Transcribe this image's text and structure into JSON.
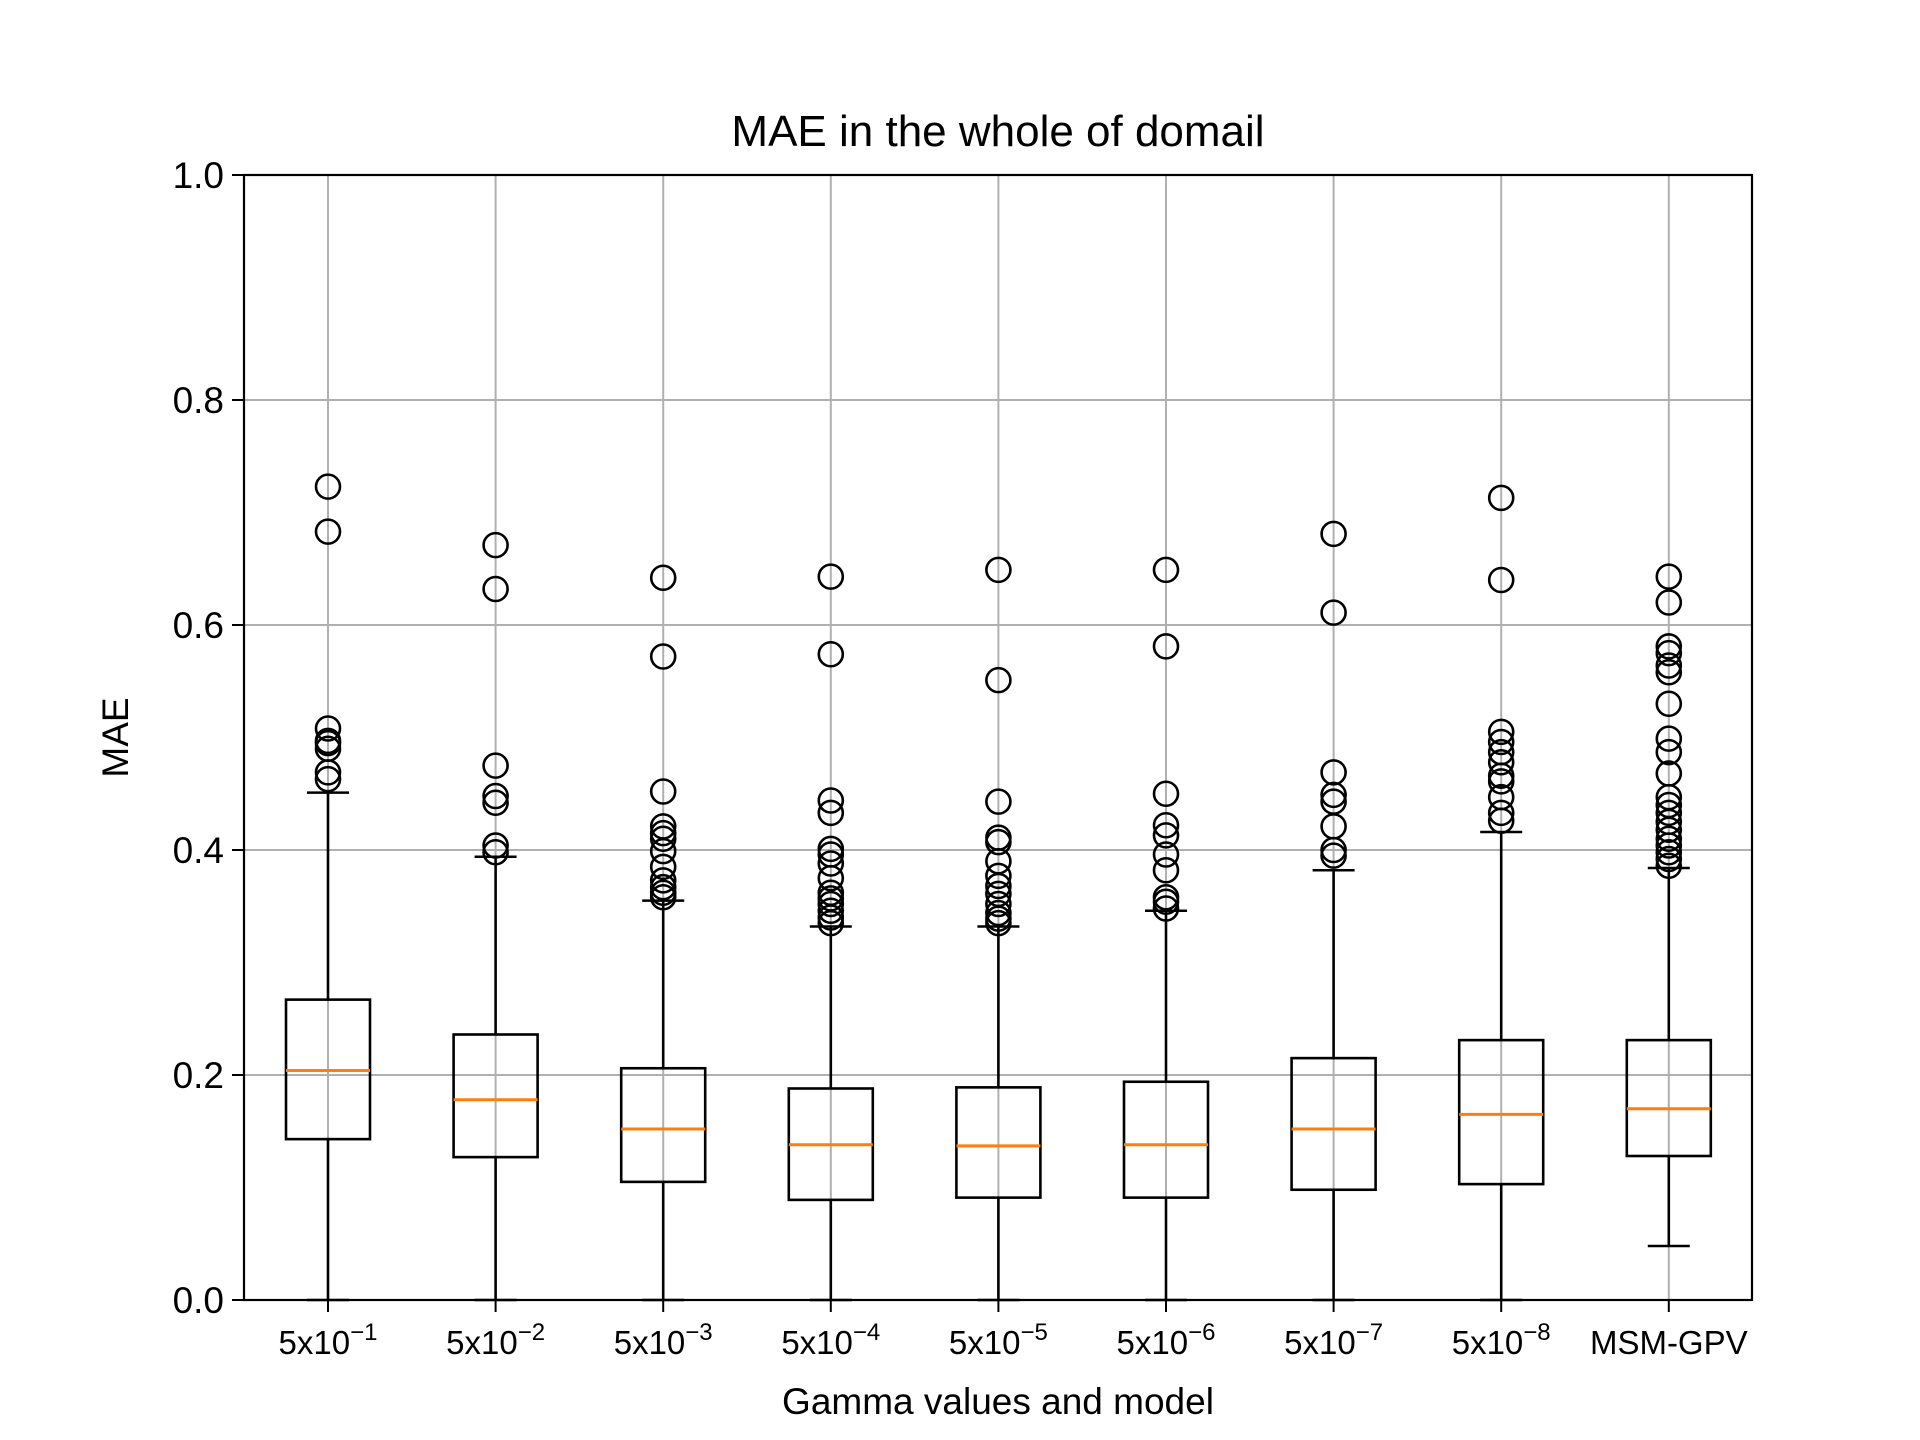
{
  "chart_data": {
    "type": "box",
    "title": "MAE in the whole of domail",
    "xlabel": "Gamma values and model",
    "ylabel": "MAE",
    "ylim": [
      0,
      1
    ],
    "yticks": [
      "0.0",
      "0.2",
      "0.4",
      "0.6",
      "0.8",
      "1.0"
    ],
    "grid": true,
    "categories": [
      {
        "base": "5x10",
        "exp": "−1"
      },
      {
        "base": "5x10",
        "exp": "−2"
      },
      {
        "base": "5x10",
        "exp": "−3"
      },
      {
        "base": "5x10",
        "exp": "−4"
      },
      {
        "base": "5x10",
        "exp": "−5"
      },
      {
        "base": "5x10",
        "exp": "−6"
      },
      {
        "base": "5x10",
        "exp": "−7"
      },
      {
        "base": "5x10",
        "exp": "−8"
      },
      {
        "base": "MSM-GPV",
        "exp": ""
      }
    ],
    "boxes": [
      {
        "whislo": 0.0,
        "q1": 0.143,
        "med": 0.204,
        "q3": 0.267,
        "whishi": 0.451,
        "fliers": [
          0.463,
          0.469,
          0.49,
          0.495,
          0.497,
          0.508,
          0.683,
          0.723
        ]
      },
      {
        "whislo": 0.0,
        "q1": 0.127,
        "med": 0.178,
        "q3": 0.236,
        "whishi": 0.394,
        "fliers": [
          0.398,
          0.404,
          0.442,
          0.448,
          0.475,
          0.632,
          0.671
        ]
      },
      {
        "whislo": 0.0,
        "q1": 0.105,
        "med": 0.152,
        "q3": 0.206,
        "whishi": 0.355,
        "fliers": [
          0.358,
          0.362,
          0.367,
          0.373,
          0.385,
          0.399,
          0.41,
          0.415,
          0.421,
          0.452,
          0.572,
          0.642
        ]
      },
      {
        "whislo": 0.0,
        "q1": 0.089,
        "med": 0.138,
        "q3": 0.188,
        "whishi": 0.332,
        "fliers": [
          0.335,
          0.34,
          0.346,
          0.352,
          0.357,
          0.362,
          0.375,
          0.388,
          0.396,
          0.401,
          0.433,
          0.444,
          0.574,
          0.643
        ]
      },
      {
        "whislo": 0.0,
        "q1": 0.091,
        "med": 0.137,
        "q3": 0.189,
        "whishi": 0.332,
        "fliers": [
          0.335,
          0.339,
          0.344,
          0.352,
          0.361,
          0.368,
          0.377,
          0.39,
          0.407,
          0.411,
          0.443,
          0.551,
          0.649
        ]
      },
      {
        "whislo": 0.0,
        "q1": 0.091,
        "med": 0.138,
        "q3": 0.194,
        "whishi": 0.346,
        "fliers": [
          0.348,
          0.354,
          0.358,
          0.382,
          0.396,
          0.413,
          0.422,
          0.45,
          0.581,
          0.649
        ]
      },
      {
        "whislo": 0.0,
        "q1": 0.098,
        "med": 0.152,
        "q3": 0.215,
        "whishi": 0.382,
        "fliers": [
          0.395,
          0.4,
          0.421,
          0.443,
          0.449,
          0.469,
          0.611,
          0.681
        ]
      },
      {
        "whislo": 0.0,
        "q1": 0.103,
        "med": 0.165,
        "q3": 0.231,
        "whishi": 0.416,
        "fliers": [
          0.426,
          0.433,
          0.447,
          0.461,
          0.466,
          0.478,
          0.487,
          0.496,
          0.505,
          0.64,
          0.713
        ]
      },
      {
        "whislo": 0.048,
        "q1": 0.128,
        "med": 0.17,
        "q3": 0.231,
        "whishi": 0.384,
        "fliers": [
          0.386,
          0.392,
          0.398,
          0.404,
          0.41,
          0.418,
          0.425,
          0.433,
          0.44,
          0.447,
          0.468,
          0.487,
          0.499,
          0.53,
          0.558,
          0.564,
          0.575,
          0.581,
          0.62,
          0.643
        ]
      }
    ],
    "colors": {
      "box": "#000000",
      "median": "#ff7f0e",
      "grid": "#b0b0b0"
    }
  }
}
